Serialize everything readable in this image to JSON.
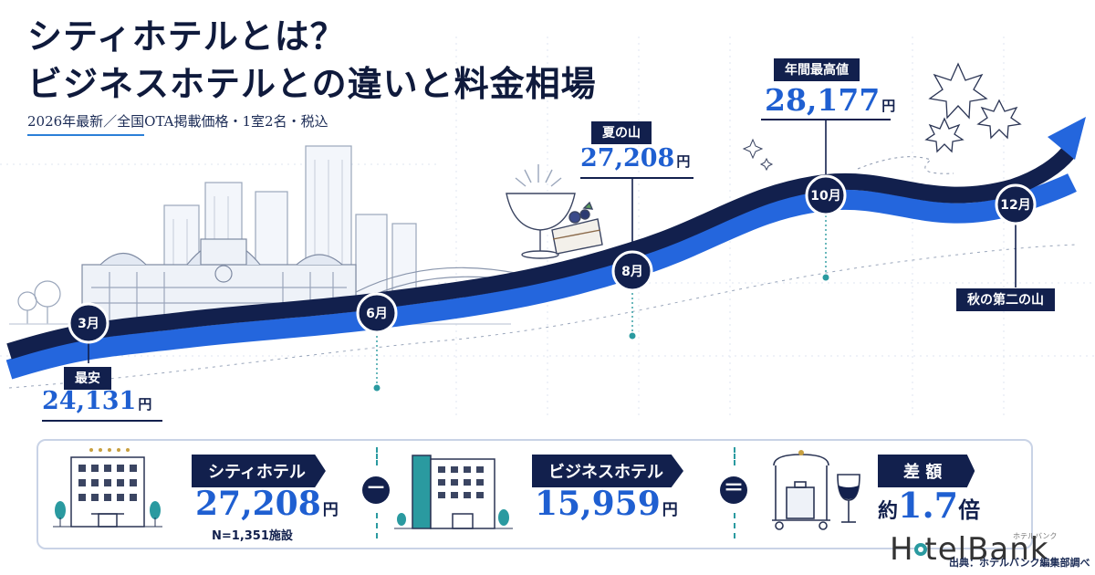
{
  "title": {
    "line1": "シティホテルとは？",
    "line2": "ビジネスホテルとの違いと料金相場"
  },
  "subtitle": "2026年最新／全国OTA掲載価格・1室2名・税込",
  "months": {
    "m3": "3月",
    "m6": "6月",
    "m8": "8月",
    "m10": "10月",
    "m12": "12月"
  },
  "callouts": {
    "lowest": {
      "label": "最安",
      "value": "24,131",
      "unit": "円"
    },
    "summer": {
      "label": "夏の山",
      "value": "27,208",
      "unit": "円"
    },
    "peak": {
      "label": "年間最高値",
      "value": "28,177",
      "unit": "円"
    },
    "autumn": {
      "label": "秋の第二の山"
    }
  },
  "comparison": {
    "city": {
      "label": "シティホテル",
      "value": "27,208",
      "unit": "円",
      "note": "N=1,351施設"
    },
    "minus": "－",
    "business": {
      "label": "ビジネスホテル",
      "value": "15,959",
      "unit": "円"
    },
    "equals": "＝",
    "diff": {
      "label": "差 額",
      "prefix": "約",
      "value": "1.7",
      "suffix": "倍"
    }
  },
  "logo": {
    "text": "H   telBank",
    "ruby": "ホテルバンク"
  },
  "source": "出典：ホテルバンク編集部調べ",
  "colors": {
    "navy": "#12204d",
    "blue": "#1f5fd1",
    "teal": "#2a9aa0"
  }
}
